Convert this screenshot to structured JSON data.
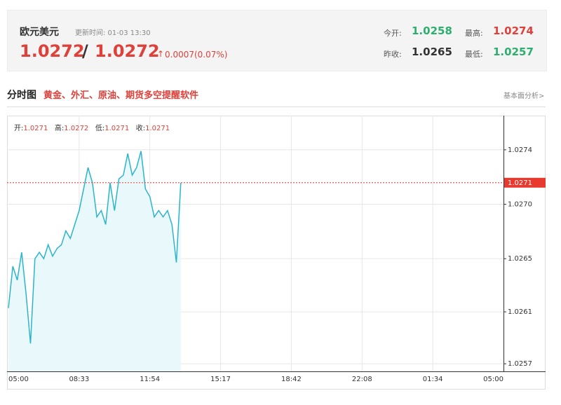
{
  "header": {
    "name": "欧元美元",
    "update_time": "更新时间: 01-03 13:30",
    "bid": "1.0272",
    "separator": "/",
    "ask": "1.0272",
    "change": "0.0007(0.07%)",
    "stats": [
      {
        "label": "今开:",
        "value": "1.0258"
      },
      {
        "label": "最高:",
        "value": "1.0274"
      },
      {
        "label": "昨收:",
        "value": "1.0265"
      },
      {
        "label": "最低:",
        "value": "1.0257"
      }
    ]
  },
  "section": {
    "title": "分时图",
    "promo": "黄金、外汇、原油、期货多空提醒软件",
    "link": "基本面分析>"
  },
  "ohlc": [
    {
      "label": "开:",
      "value": "1.0271"
    },
    {
      "label": "高:",
      "value": "1.0272"
    },
    {
      "label": "低:",
      "value": "1.0271"
    },
    {
      "label": "收:",
      "value": "1.0271"
    }
  ],
  "chart_data": {
    "type": "line",
    "categories": [
      "05:00",
      null,
      null,
      null,
      null,
      null,
      null,
      null,
      null,
      null,
      null,
      null,
      null,
      null,
      null,
      null,
      "08:33",
      null,
      null,
      null,
      null,
      null,
      null,
      null,
      null,
      null,
      null,
      null,
      null,
      null,
      null,
      null,
      "11:54",
      null,
      null,
      null,
      null,
      null,
      null,
      null,
      null,
      null,
      null,
      null,
      null,
      null,
      null,
      null,
      "15:17",
      null,
      null,
      null,
      null,
      null,
      null,
      null,
      null,
      null,
      null,
      null,
      null,
      null,
      null,
      null,
      "18:42",
      null,
      null,
      null,
      null,
      null,
      null,
      null,
      null,
      null,
      null,
      null,
      null,
      null,
      null,
      null,
      "22:08",
      null,
      null,
      null,
      null,
      null,
      null,
      null,
      null,
      null,
      null,
      null,
      null,
      null,
      null,
      null,
      "01:34",
      null,
      null,
      null,
      null,
      null,
      null,
      null,
      null,
      null,
      null,
      null,
      null,
      null,
      null,
      null,
      "05:00"
    ],
    "series": [
      {
        "color": "#2bb5cc",
        "fill": "#e9f8fb",
        "values": [
          1.02615,
          1.02648,
          1.02637,
          1.02659,
          1.02626,
          1.02587,
          1.02654,
          1.02659,
          1.02654,
          1.02665,
          1.02656,
          1.02662,
          1.02665,
          1.02676,
          1.0267,
          1.02681,
          1.02692,
          1.02709,
          1.02726,
          1.02714,
          1.02687,
          1.02692,
          1.02681,
          1.02714,
          1.02692,
          1.02717,
          1.0272,
          1.02737,
          1.0272,
          1.02726,
          1.02739,
          1.02709,
          1.02703,
          1.02687,
          1.02692,
          1.02687,
          1.02692,
          1.02681,
          1.02651,
          1.02714,
          null,
          null,
          null,
          null,
          null,
          null,
          null,
          null,
          null,
          null,
          null,
          null,
          null,
          null,
          null,
          null,
          null,
          null,
          null,
          null,
          null,
          null,
          null,
          null,
          null,
          null,
          null,
          null,
          null,
          null,
          null,
          null,
          null,
          null,
          null,
          null,
          null,
          null,
          null,
          null,
          null,
          null,
          null,
          null,
          null,
          null,
          null,
          null,
          null,
          null,
          null,
          null,
          null,
          null,
          null,
          null,
          null,
          null,
          null,
          null,
          null,
          null,
          null,
          null,
          null,
          null,
          null,
          null,
          null,
          null,
          null,
          null,
          null
        ]
      }
    ],
    "ylim": [
      1.02565,
      1.02767
    ],
    "yticks": [
      {
        "value": 1.0274,
        "label": "1.0274"
      },
      {
        "value": 1.02697,
        "label": "1.0270"
      },
      {
        "value": 1.02654,
        "label": "1.0265"
      },
      {
        "value": 1.02612,
        "label": "1.0261"
      },
      {
        "value": 1.02571,
        "label": "1.0257"
      }
    ],
    "current": {
      "value": 1.02714,
      "label": "1.0271",
      "color": "#e8392f"
    },
    "grid": true
  }
}
